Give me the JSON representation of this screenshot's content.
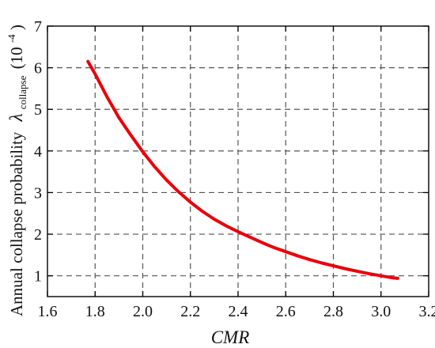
{
  "chart_data": {
    "type": "line",
    "title": "",
    "xlabel": "CMR",
    "ylabel": {
      "prefix": "Annual collapse probability",
      "symbol": "λ",
      "subscript": "collapse",
      "unit_open": "(10",
      "unit_exp": "-4",
      "unit_close": ")"
    },
    "xlim": [
      1.6,
      3.2
    ],
    "ylim": [
      0.5,
      7
    ],
    "xticks": [
      "1.6",
      "1.8",
      "2.0",
      "2.2",
      "2.4",
      "2.6",
      "2.8",
      "3.0",
      "3.2"
    ],
    "yticks": [
      "1",
      "2",
      "3",
      "4",
      "5",
      "6",
      "7"
    ],
    "grid": true,
    "series": [
      {
        "color": "#e8000b",
        "x": [
          1.77,
          1.8,
          1.85,
          1.9,
          1.95,
          2.0,
          2.05,
          2.1,
          2.15,
          2.2,
          2.25,
          2.3,
          2.35,
          2.4,
          2.45,
          2.5,
          2.55,
          2.6,
          2.65,
          2.7,
          2.75,
          2.8,
          2.85,
          2.9,
          2.95,
          3.0,
          3.05,
          3.07
        ],
        "y": [
          6.15,
          5.85,
          5.3,
          4.8,
          4.38,
          3.98,
          3.62,
          3.3,
          3.02,
          2.77,
          2.55,
          2.36,
          2.2,
          2.06,
          1.93,
          1.8,
          1.68,
          1.58,
          1.48,
          1.39,
          1.31,
          1.24,
          1.17,
          1.11,
          1.05,
          1.0,
          0.95,
          0.94
        ]
      }
    ]
  }
}
